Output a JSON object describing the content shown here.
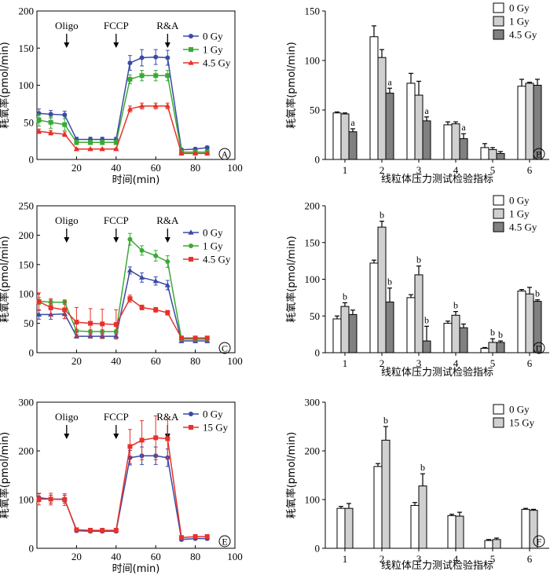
{
  "colors": {
    "blue": "#3a4aa6",
    "green": "#3aaa35",
    "red": "#e8312a",
    "bar_white": "#ffffff",
    "bar_light": "#d0d0d0",
    "bar_dark": "#808080",
    "stroke": "#000000"
  },
  "chart_data": [
    {
      "id": "A",
      "panel_letter": "A",
      "type": "line",
      "ylabel": "耗氧率(pmol/min)",
      "xlabel": "时间(min)",
      "xlim": [
        0,
        100
      ],
      "ylim": [
        0,
        200
      ],
      "xticks": [
        "0",
        "20",
        "40",
        "60",
        "80",
        "100"
      ],
      "yticks": [
        "0",
        "50",
        "100",
        "150",
        "200"
      ],
      "annotations": [
        {
          "label": "Oligo",
          "x": 15
        },
        {
          "label": "FCCP",
          "x": 40
        },
        {
          "label": "R&A",
          "x": 66
        }
      ],
      "legend": "top-right",
      "x": [
        1,
        7,
        14,
        20,
        27,
        33,
        40,
        47,
        53,
        60,
        66,
        73,
        80,
        86
      ],
      "series": [
        {
          "name": "0 Gy",
          "color_key": "blue",
          "marker": "circle",
          "values": [
            62,
            61,
            60,
            27,
            27,
            27,
            27,
            130,
            137,
            138,
            137,
            13,
            14,
            16
          ],
          "errors": [
            6,
            5,
            5,
            3,
            3,
            3,
            3,
            10,
            11,
            10,
            10,
            2,
            2,
            2
          ]
        },
        {
          "name": "1 Gy",
          "color_key": "green",
          "marker": "square",
          "values": [
            53,
            50,
            47,
            23,
            23,
            23,
            23,
            108,
            113,
            113,
            113,
            10,
            10,
            10
          ],
          "errors": [
            8,
            8,
            8,
            3,
            3,
            3,
            3,
            6,
            7,
            7,
            7,
            1,
            1,
            1
          ]
        },
        {
          "name": "4.5 Gy",
          "color_key": "red",
          "marker": "triangle",
          "values": [
            38,
            36,
            34,
            14,
            14,
            14,
            14,
            68,
            72,
            72,
            72,
            8,
            8,
            8
          ],
          "errors": [
            3,
            3,
            3,
            1,
            1,
            1,
            1,
            4,
            4,
            4,
            4,
            1,
            1,
            1
          ]
        }
      ]
    },
    {
      "id": "B",
      "panel_letter": "B",
      "type": "bar",
      "ylabel": "耗氧率(pmol/min)",
      "xlabel": "线粒体压力测试检验指标",
      "ylim": [
        0,
        150
      ],
      "yticks": [
        "0",
        "50",
        "100",
        "150"
      ],
      "categories": [
        "1",
        "2",
        "3",
        "4",
        "5",
        "6"
      ],
      "legend": "top-right",
      "series": [
        {
          "name": "0 Gy",
          "color_key": "bar_white",
          "values": [
            47,
            124,
            77,
            35,
            12,
            74
          ],
          "errors": [
            1,
            11,
            10,
            3,
            4,
            7
          ],
          "marks": [
            "",
            "",
            "",
            "",
            "",
            ""
          ]
        },
        {
          "name": "1 Gy",
          "color_key": "bar_light",
          "values": [
            46,
            103,
            65,
            36,
            10,
            77
          ],
          "errors": [
            1,
            8,
            14,
            2,
            2,
            1
          ],
          "marks": [
            "",
            "",
            "",
            "",
            "",
            ""
          ]
        },
        {
          "name": "4.5 Gy",
          "color_key": "bar_dark",
          "values": [
            28,
            67,
            39,
            21,
            6,
            75
          ],
          "errors": [
            3,
            5,
            4,
            5,
            2,
            6
          ],
          "marks": [
            "a",
            "a",
            "a",
            "a",
            "",
            ""
          ]
        }
      ]
    },
    {
      "id": "C",
      "panel_letter": "C",
      "type": "line",
      "ylabel": "耗氧率(pmol/min)",
      "xlabel": "",
      "xlim": [
        0,
        100
      ],
      "ylim": [
        0,
        250
      ],
      "xticks": [
        "0",
        "20",
        "40",
        "60",
        "80",
        "100"
      ],
      "yticks": [
        "0",
        "50",
        "100",
        "150",
        "200",
        "250"
      ],
      "annotations": [
        {
          "label": "Oligo",
          "x": 15
        },
        {
          "label": "FCCP",
          "x": 40
        },
        {
          "label": "R&A",
          "x": 66
        }
      ],
      "legend": "top-right",
      "x": [
        1,
        7,
        14,
        20,
        27,
        33,
        40,
        47,
        53,
        60,
        66,
        73,
        80,
        86
      ],
      "series": [
        {
          "name": "0 Gy",
          "color_key": "blue",
          "marker": "triangle",
          "values": [
            65,
            65,
            66,
            28,
            28,
            28,
            28,
            140,
            128,
            122,
            115,
            20,
            20,
            20
          ],
          "errors": [
            8,
            8,
            8,
            3,
            3,
            3,
            3,
            6,
            8,
            7,
            8,
            3,
            3,
            3
          ]
        },
        {
          "name": "1 Gy",
          "color_key": "green",
          "marker": "circle",
          "values": [
            88,
            86,
            86,
            37,
            36,
            36,
            36,
            193,
            174,
            165,
            155,
            23,
            23,
            23
          ],
          "errors": [
            6,
            4,
            4,
            3,
            3,
            3,
            3,
            10,
            8,
            9,
            10,
            3,
            3,
            3
          ]
        },
        {
          "name": "4.5 Gy",
          "color_key": "red",
          "marker": "square",
          "values": [
            87,
            77,
            73,
            52,
            50,
            49,
            48,
            92,
            77,
            73,
            68,
            25,
            25,
            25
          ],
          "errors": [
            15,
            15,
            15,
            25,
            25,
            25,
            25,
            6,
            4,
            4,
            4,
            3,
            3,
            3
          ]
        }
      ]
    },
    {
      "id": "D",
      "panel_letter": "D",
      "type": "bar",
      "ylabel": "耗氧率(pmol/min)",
      "xlabel": "线粒体压力测试检验指标",
      "ylim": [
        0,
        200
      ],
      "yticks": [
        "0",
        "50",
        "100",
        "150",
        "200"
      ],
      "categories": [
        "1",
        "2",
        "3",
        "4",
        "5",
        "6"
      ],
      "legend": "top-right",
      "series": [
        {
          "name": "0 Gy",
          "color_key": "bar_white",
          "values": [
            46,
            122,
            75,
            40,
            6,
            84
          ],
          "errors": [
            4,
            4,
            4,
            3,
            1,
            2
          ],
          "marks": [
            "",
            "",
            "",
            "",
            "",
            ""
          ]
        },
        {
          "name": "1 Gy",
          "color_key": "bar_light",
          "values": [
            63,
            171,
            106,
            51,
            14,
            80
          ],
          "errors": [
            5,
            8,
            12,
            5,
            5,
            9
          ],
          "marks": [
            "b",
            "b",
            "b",
            "b",
            "b",
            ""
          ]
        },
        {
          "name": "4.5 Gy",
          "color_key": "bar_dark",
          "values": [
            52,
            69,
            16,
            34,
            14,
            70
          ],
          "errors": [
            6,
            19,
            20,
            5,
            2,
            2
          ],
          "marks": [
            "",
            "b",
            "b",
            "",
            "b",
            "b"
          ]
        }
      ]
    },
    {
      "id": "E",
      "panel_letter": "E",
      "type": "line",
      "ylabel": "耗氧率(pmol/min)",
      "xlabel": "时间(min)",
      "xlim": [
        0,
        100
      ],
      "ylim": [
        0,
        300
      ],
      "xticks": [
        "0",
        "20",
        "40",
        "60",
        "80",
        "100"
      ],
      "yticks": [
        "0",
        "100",
        "200",
        "300"
      ],
      "annotations": [
        {
          "label": "Oligo",
          "x": 15
        },
        {
          "label": "FCCP",
          "x": 40
        },
        {
          "label": "R&A",
          "x": 66
        }
      ],
      "legend": "top-right",
      "x": [
        1,
        7,
        14,
        20,
        27,
        33,
        40,
        47,
        53,
        60,
        66,
        73,
        80,
        86
      ],
      "series": [
        {
          "name": "0 Gy",
          "color_key": "blue",
          "marker": "circle",
          "values": [
            104,
            101,
            101,
            36,
            35,
            35,
            35,
            186,
            190,
            190,
            186,
            18,
            20,
            20
          ],
          "errors": [
            8,
            8,
            8,
            3,
            3,
            3,
            3,
            15,
            18,
            18,
            18,
            3,
            3,
            3
          ]
        },
        {
          "name": "15 Gy",
          "color_key": "red",
          "marker": "square",
          "values": [
            101,
            101,
            100,
            38,
            37,
            37,
            37,
            209,
            222,
            227,
            225,
            22,
            24,
            24
          ],
          "errors": [
            12,
            12,
            12,
            4,
            4,
            4,
            4,
            35,
            40,
            45,
            40,
            4,
            4,
            4
          ]
        }
      ]
    },
    {
      "id": "F",
      "panel_letter": "F",
      "type": "bar",
      "ylabel": "耗氧率(pmol/min)",
      "xlabel": "线粒体压力测试检验指标",
      "ylim": [
        0,
        300
      ],
      "yticks": [
        "0",
        "100",
        "200",
        "300"
      ],
      "categories": [
        "1",
        "2",
        "3",
        "4",
        "5",
        "6"
      ],
      "legend": "top-right",
      "series": [
        {
          "name": "0 Gy",
          "color_key": "bar_white",
          "values": [
            82,
            168,
            88,
            67,
            16,
            80
          ],
          "errors": [
            4,
            6,
            6,
            3,
            2,
            2
          ],
          "marks": [
            "",
            "",
            "",
            "",
            "",
            ""
          ]
        },
        {
          "name": "15 Gy",
          "color_key": "bar_light",
          "values": [
            82,
            222,
            128,
            66,
            18,
            78
          ],
          "errors": [
            10,
            28,
            25,
            8,
            3,
            2
          ],
          "marks": [
            "",
            "b",
            "b",
            "",
            "",
            ""
          ]
        }
      ]
    }
  ]
}
